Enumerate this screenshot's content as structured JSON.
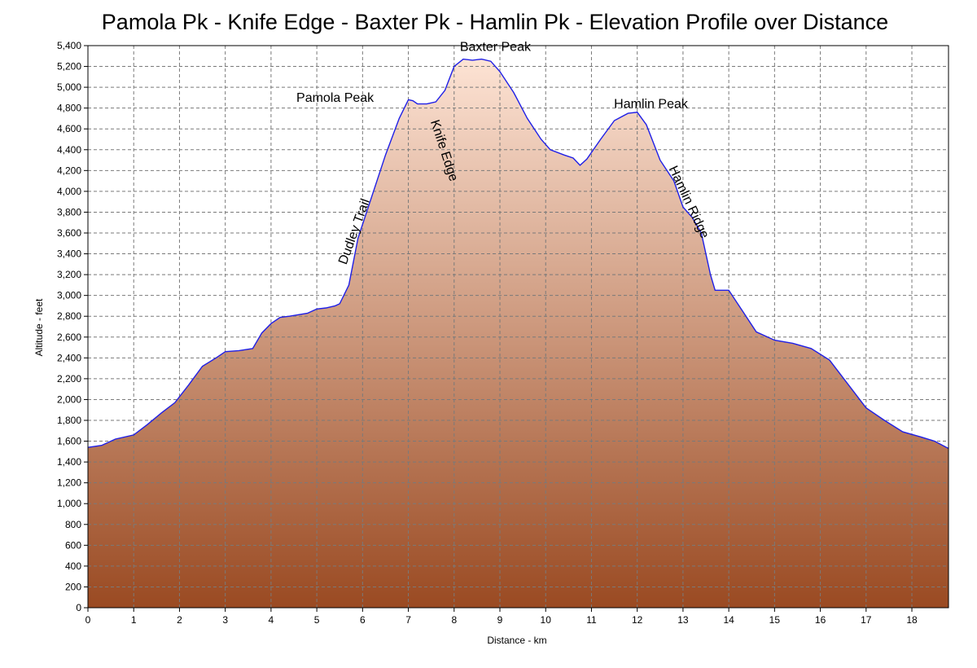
{
  "chart_data": {
    "type": "area",
    "title": "Pamola Pk - Knife Edge - Baxter Pk - Hamlin Pk - Elevation Profile over Distance",
    "xlabel": "Distance - km",
    "ylabel": "Altitude - feet",
    "xlim": [
      0,
      18.8
    ],
    "ylim": [
      0,
      5400
    ],
    "x_ticks": [
      0,
      1,
      2,
      3,
      4,
      5,
      6,
      7,
      8,
      9,
      10,
      11,
      12,
      13,
      14,
      15,
      16,
      17,
      18
    ],
    "x_tick_labels": [
      "0",
      "1",
      "2",
      "3",
      "4",
      "5",
      "6",
      "7",
      "8",
      "9",
      "10",
      "11",
      "12",
      "13",
      "14",
      "15",
      "16",
      "17",
      "18"
    ],
    "y_ticks": [
      0,
      200,
      400,
      600,
      800,
      1000,
      1200,
      1400,
      1600,
      1800,
      2000,
      2200,
      2400,
      2600,
      2800,
      3000,
      3200,
      3400,
      3600,
      3800,
      4000,
      4200,
      4400,
      4600,
      4800,
      5000,
      5200,
      5400
    ],
    "y_tick_labels": [
      "0",
      "200",
      "400",
      "600",
      "800",
      "1,000",
      "1,200",
      "1,400",
      "1,600",
      "1,800",
      "2,000",
      "2,200",
      "2,400",
      "2,600",
      "2,800",
      "3,000",
      "3,200",
      "3,400",
      "3,600",
      "3,800",
      "4,000",
      "4,200",
      "4,400",
      "4,600",
      "4,800",
      "5,000",
      "5,200",
      "5,400"
    ],
    "grid": true,
    "line_color": "#1f1fe6",
    "fill_top_color": "#fde3d4",
    "fill_bottom_color": "#9a4a22",
    "series": [
      {
        "x": [
          0,
          0.3,
          0.6,
          1.0,
          1.3,
          1.6,
          1.9,
          2.2,
          2.5,
          2.8,
          3.0,
          3.3,
          3.6,
          3.8,
          4.0,
          4.2,
          4.4,
          4.8,
          5.0,
          5.2,
          5.4,
          5.5,
          5.7,
          5.9,
          6.2,
          6.5,
          6.8,
          7.0,
          7.1,
          7.2,
          7.4,
          7.6,
          7.8,
          8.0,
          8.2,
          8.4,
          8.6,
          8.8,
          9.0,
          9.3,
          9.6,
          9.9,
          10.1,
          10.4,
          10.6,
          10.75,
          10.9,
          11.2,
          11.5,
          11.8,
          12.0,
          12.2,
          12.5,
          12.8,
          13.0,
          13.2,
          13.4,
          13.6,
          13.7,
          14.0,
          14.3,
          14.6,
          15.0,
          15.4,
          15.8,
          16.2,
          16.6,
          17.0,
          17.4,
          17.8,
          18.2,
          18.5,
          18.8
        ],
        "y": [
          1540,
          1560,
          1620,
          1660,
          1760,
          1870,
          1970,
          2140,
          2320,
          2400,
          2460,
          2470,
          2490,
          2640,
          2730,
          2790,
          2800,
          2830,
          2870,
          2880,
          2900,
          2920,
          3100,
          3550,
          3950,
          4350,
          4700,
          4880,
          4870,
          4840,
          4840,
          4860,
          4970,
          5200,
          5270,
          5260,
          5270,
          5250,
          5150,
          4950,
          4700,
          4500,
          4400,
          4350,
          4320,
          4250,
          4310,
          4500,
          4680,
          4750,
          4760,
          4640,
          4300,
          4100,
          3850,
          3750,
          3600,
          3200,
          3050,
          3050,
          2850,
          2650,
          2570,
          2540,
          2490,
          2380,
          2150,
          1920,
          1800,
          1690,
          1640,
          1600,
          1530
        ]
      }
    ],
    "annotations": [
      {
        "text": "Pamola Peak",
        "x": 5.4,
        "y": 4860,
        "rotation": 0
      },
      {
        "text": "Baxter Peak",
        "x": 8.9,
        "y": 5350,
        "rotation": 0
      },
      {
        "text": "Hamlin Peak",
        "x": 12.3,
        "y": 4800,
        "rotation": 0
      },
      {
        "text": "Dudley Trail",
        "x": 5.9,
        "y": 3600,
        "rotation": -70
      },
      {
        "text": "Knife Edge",
        "x": 7.7,
        "y": 4380,
        "rotation": 72
      },
      {
        "text": "Hamlin Ridge",
        "x": 13.05,
        "y": 3880,
        "rotation": 65
      }
    ]
  }
}
